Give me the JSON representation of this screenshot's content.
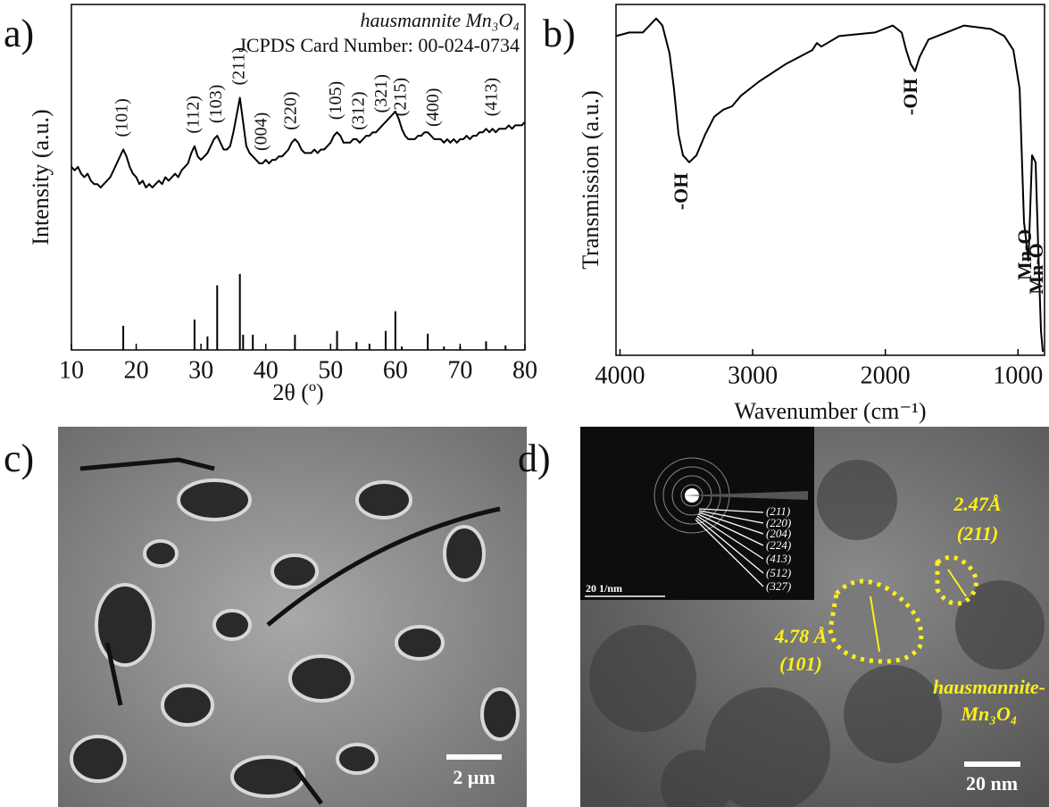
{
  "chart_data": [
    {
      "type": "line",
      "panel_label": "a)",
      "annotations": [
        "hausmannite Mn₃O₄",
        "JCPDS Card Number: 00-024-0734"
      ],
      "xlabel": "2θ (º)",
      "ylabel": "Intensity (a.u.)",
      "color": "#000000",
      "xlim": [
        10,
        80
      ],
      "ylim": [
        0,
        100
      ],
      "xticks": [
        10,
        20,
        30,
        40,
        50,
        60,
        70,
        80
      ],
      "x": [
        10,
        10.5,
        11,
        11.5,
        12,
        12.5,
        13,
        13.5,
        14,
        14.5,
        15,
        15.5,
        16,
        16.5,
        17,
        17.5,
        18,
        18.5,
        19,
        19.5,
        20,
        20.5,
        21,
        21.5,
        22,
        22.5,
        23,
        23.5,
        24,
        24.5,
        25,
        25.5,
        26,
        26.5,
        27,
        27.5,
        28,
        28.5,
        29,
        29.5,
        30,
        30.5,
        31,
        31.5,
        32,
        32.5,
        33,
        33.5,
        34,
        34.5,
        35,
        35.5,
        36,
        36.5,
        37,
        37.5,
        38,
        38.5,
        39,
        39.5,
        40,
        40.5,
        41,
        41.5,
        42,
        42.5,
        43,
        43.5,
        44,
        44.5,
        45,
        45.5,
        46,
        46.5,
        47,
        47.5,
        48,
        48.5,
        49,
        49.5,
        50,
        50.5,
        51,
        51.5,
        52,
        52.5,
        53,
        53.5,
        54,
        54.5,
        55,
        55.5,
        56,
        56.5,
        57,
        57.5,
        58,
        58.5,
        59,
        59.5,
        60,
        60.5,
        61,
        61.5,
        62,
        62.5,
        63,
        63.5,
        64,
        64.5,
        65,
        65.5,
        66,
        66.5,
        67,
        67.5,
        68,
        68.5,
        69,
        69.5,
        70,
        70.5,
        71,
        71.5,
        72,
        72.5,
        73,
        73.5,
        74,
        74.5,
        75,
        75.5,
        76,
        76.5,
        77,
        77.5,
        78,
        78.5,
        79,
        79.5,
        80
      ],
      "values": [
        53,
        52,
        53,
        51,
        50,
        51,
        49,
        48,
        48,
        47,
        48,
        49,
        50,
        52,
        54,
        56,
        58,
        56,
        53,
        51,
        50,
        48,
        49,
        47,
        48,
        47,
        48,
        49,
        48,
        50,
        49,
        50,
        51,
        50,
        52,
        53,
        54,
        57,
        59,
        56,
        55,
        56,
        57,
        59,
        61,
        62,
        60,
        58,
        58,
        59,
        63,
        68,
        73,
        66,
        59,
        57,
        56,
        55,
        54,
        54,
        55,
        54,
        55,
        55,
        56,
        56,
        57,
        58,
        60,
        61,
        60,
        58,
        57,
        57,
        57,
        58,
        57,
        58,
        58,
        59,
        60,
        62,
        63,
        62,
        60,
        60,
        60,
        61,
        61,
        60,
        61,
        62,
        62,
        63,
        63,
        64,
        65,
        66,
        67,
        68,
        69,
        67,
        64,
        62,
        61,
        61,
        61,
        62,
        62,
        63,
        63,
        62,
        61,
        61,
        61,
        60,
        61,
        60,
        61,
        60,
        61,
        61,
        62,
        61,
        62,
        62,
        63,
        63,
        64,
        63,
        64,
        63,
        64,
        64,
        64,
        65,
        64,
        65,
        65,
        65,
        66
      ],
      "reference": {
        "x": [
          18,
          29,
          31,
          32.5,
          36,
          36.5,
          38,
          44.5,
          51,
          54,
          56,
          58.5,
          60,
          61,
          65,
          67.5,
          70,
          74,
          77
        ],
        "values": [
          7,
          8.8,
          3.9,
          18.7,
          22,
          4.4,
          4.4,
          4.4,
          5.5,
          2.3,
          1.8,
          5.5,
          11.2,
          1,
          4.7,
          1,
          1,
          2.5,
          1.3
        ]
      },
      "peak_labels": [
        {
          "text": "(101)",
          "x": 18
        },
        {
          "text": "(112)",
          "x": 29
        },
        {
          "text": "(103)",
          "x": 32.5
        },
        {
          "text": "(211)",
          "x": 36
        },
        {
          "text": "(004)",
          "x": 39.5
        },
        {
          "text": "(220)",
          "x": 44
        },
        {
          "text": "(105)",
          "x": 51
        },
        {
          "text": "(312)",
          "x": 54.5
        },
        {
          "text": "(321)",
          "x": 58
        },
        {
          "text": "(215)",
          "x": 61
        },
        {
          "text": "(400)",
          "x": 66
        },
        {
          "text": "(413)",
          "x": 75
        }
      ]
    },
    {
      "type": "line",
      "panel_label": "b)",
      "xlabel": "Wavenumber (cm⁻¹)",
      "ylabel": "Transmission (a.u.)",
      "color": "#000000",
      "xlim": [
        4030,
        800
      ],
      "ylim": [
        0,
        100
      ],
      "xticks": [
        4000,
        3000,
        2000,
        1000
      ],
      "x": [
        4030,
        3929,
        3828,
        3727,
        3680,
        3626,
        3593,
        3559,
        3525,
        3478,
        3424,
        3357,
        3290,
        3222,
        3155,
        3088,
        2953,
        2751,
        2550,
        2516,
        2482,
        2348,
        2078,
        1944,
        1877,
        1843,
        1809,
        1776,
        1742,
        1675,
        1540,
        1406,
        1204,
        1103,
        1035,
        988,
        955,
        921,
        894,
        867,
        847,
        827,
        813
      ],
      "values": [
        91,
        92,
        92,
        96,
        94,
        86,
        76,
        63,
        57,
        55,
        57,
        63,
        68,
        70,
        71,
        74,
        78,
        83,
        87,
        89,
        88,
        91,
        92,
        94,
        92,
        87,
        83,
        81,
        85,
        90,
        92,
        94,
        93,
        91,
        87,
        76,
        38,
        27,
        57,
        55,
        30,
        7,
        1
      ],
      "annotations": [
        {
          "text": "-OH",
          "x": 3525,
          "y": 52
        },
        {
          "text": "-OH",
          "x": 1796,
          "y": 79
        },
        {
          "text": "Mn-O",
          "x": 934,
          "y": 36
        },
        {
          "text": "Mn-O",
          "x": 847,
          "y": 32
        }
      ]
    }
  ],
  "images": [
    {
      "panel_label": "c)",
      "scale_bar": "2 μm"
    },
    {
      "panel_label": "d)",
      "scale_bar": "20 nm",
      "inset": {
        "scale_bar": "20 1/nm",
        "planes": [
          "(211)",
          "(220)",
          "(204)",
          "(224)",
          "(413)",
          "(512)",
          "(327)"
        ]
      },
      "annotations": [
        "2.47Å",
        "(211)",
        "4.78 Å",
        "(101)",
        "hausmannite-",
        "Mn₃O₄"
      ]
    }
  ]
}
